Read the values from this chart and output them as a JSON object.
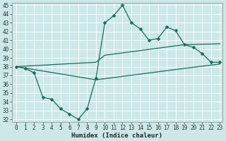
{
  "xlabel": "Humidex (Indice chaleur)",
  "xlim": [
    -0.5,
    23.3
  ],
  "ylim": [
    31.7,
    45.3
  ],
  "yticks": [
    32,
    33,
    34,
    35,
    36,
    37,
    38,
    39,
    40,
    41,
    42,
    43,
    44,
    45
  ],
  "xticks": [
    0,
    1,
    2,
    3,
    4,
    5,
    6,
    7,
    8,
    9,
    10,
    11,
    12,
    13,
    14,
    15,
    16,
    17,
    18,
    19,
    20,
    21,
    22,
    23
  ],
  "bg_color": "#cce8e8",
  "line_color": "#1a6b5a",
  "grid_color": "#b0d8d8",
  "line1_x": [
    0,
    1,
    2,
    3,
    4,
    5,
    6,
    7,
    8,
    9,
    10,
    11,
    12,
    13,
    14,
    15,
    16,
    17,
    18,
    19,
    20,
    21,
    22,
    23
  ],
  "line1_y": [
    38.0,
    37.8,
    37.3,
    34.5,
    34.3,
    33.2,
    32.6,
    32.0,
    33.2,
    36.7,
    43.0,
    43.8,
    45.0,
    43.0,
    42.3,
    41.0,
    41.2,
    42.5,
    42.1,
    40.5,
    40.2,
    39.5,
    38.5,
    38.5
  ],
  "line2_x": [
    0,
    9,
    10,
    19,
    23
  ],
  "line2_y": [
    38.0,
    38.5,
    39.3,
    40.5,
    40.6
  ],
  "line3_x": [
    0,
    9,
    19,
    23
  ],
  "line3_y": [
    38.0,
    36.5,
    37.8,
    38.3
  ],
  "marker": "D",
  "markersize": 2.5,
  "linewidth": 0.9,
  "tick_fontsize": 5.5,
  "xlabel_fontsize": 6.5
}
